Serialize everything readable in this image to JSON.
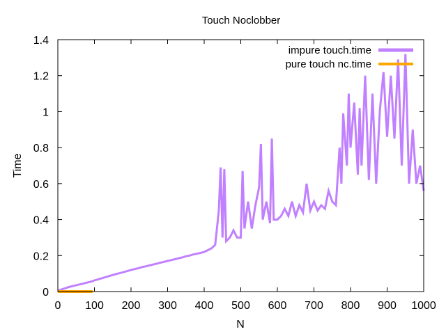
{
  "chart_data": {
    "type": "line",
    "title": "Touch Noclobber",
    "xlabel": "N",
    "ylabel": "Time",
    "xlim": [
      0,
      1000
    ],
    "ylim": [
      0,
      1.4
    ],
    "xticks": [
      "0",
      "100",
      "200",
      "300",
      "400",
      "500",
      "600",
      "700",
      "800",
      "900",
      "1000"
    ],
    "yticks": [
      "0",
      "0.2",
      "0.4",
      "0.6",
      "0.8",
      "1",
      "1.2",
      "1.4"
    ],
    "grid": false,
    "legend_position": "top-right",
    "series": [
      {
        "name": "impure touch.time",
        "color": "#c080ff",
        "x": [
          0,
          10,
          20,
          30,
          40,
          50,
          60,
          70,
          80,
          90,
          100,
          110,
          120,
          130,
          140,
          150,
          160,
          170,
          180,
          190,
          200,
          210,
          220,
          230,
          240,
          250,
          260,
          270,
          280,
          290,
          300,
          310,
          320,
          330,
          340,
          350,
          360,
          370,
          380,
          390,
          400,
          410,
          420,
          430,
          440,
          445,
          450,
          455,
          460,
          470,
          480,
          490,
          500,
          505,
          510,
          520,
          530,
          540,
          550,
          555,
          560,
          570,
          580,
          585,
          590,
          600,
          610,
          620,
          630,
          640,
          650,
          660,
          670,
          680,
          690,
          700,
          710,
          720,
          730,
          740,
          750,
          760,
          770,
          775,
          780,
          790,
          795,
          800,
          810,
          820,
          825,
          830,
          840,
          850,
          860,
          870,
          880,
          890,
          900,
          910,
          920,
          930,
          940,
          950,
          960,
          970,
          980,
          990,
          1000
        ],
        "values": [
          0.005,
          0.012,
          0.018,
          0.025,
          0.03,
          0.035,
          0.04,
          0.045,
          0.05,
          0.055,
          0.062,
          0.068,
          0.074,
          0.08,
          0.086,
          0.092,
          0.098,
          0.103,
          0.108,
          0.114,
          0.12,
          0.125,
          0.13,
          0.136,
          0.14,
          0.145,
          0.15,
          0.155,
          0.16,
          0.165,
          0.17,
          0.175,
          0.18,
          0.185,
          0.19,
          0.196,
          0.2,
          0.206,
          0.21,
          0.215,
          0.22,
          0.23,
          0.24,
          0.26,
          0.45,
          0.69,
          0.3,
          0.68,
          0.28,
          0.3,
          0.34,
          0.3,
          0.3,
          0.67,
          0.35,
          0.5,
          0.35,
          0.48,
          0.58,
          0.82,
          0.4,
          0.5,
          0.38,
          0.85,
          0.4,
          0.4,
          0.42,
          0.46,
          0.42,
          0.5,
          0.42,
          0.48,
          0.44,
          0.6,
          0.45,
          0.5,
          0.45,
          0.48,
          0.46,
          0.56,
          0.5,
          0.48,
          0.8,
          0.6,
          0.99,
          0.7,
          1.1,
          0.8,
          1.05,
          0.65,
          1.02,
          0.7,
          1.2,
          0.62,
          1.1,
          0.6,
          1.0,
          1.22,
          0.86,
          1.2,
          0.85,
          1.29,
          0.7,
          1.32,
          0.6,
          0.9,
          0.6,
          0.7,
          0.56
        ]
      },
      {
        "name": "pure touch nc.time",
        "color": "#ffa500",
        "x": [
          0,
          95
        ],
        "values": [
          0,
          0
        ]
      }
    ]
  }
}
